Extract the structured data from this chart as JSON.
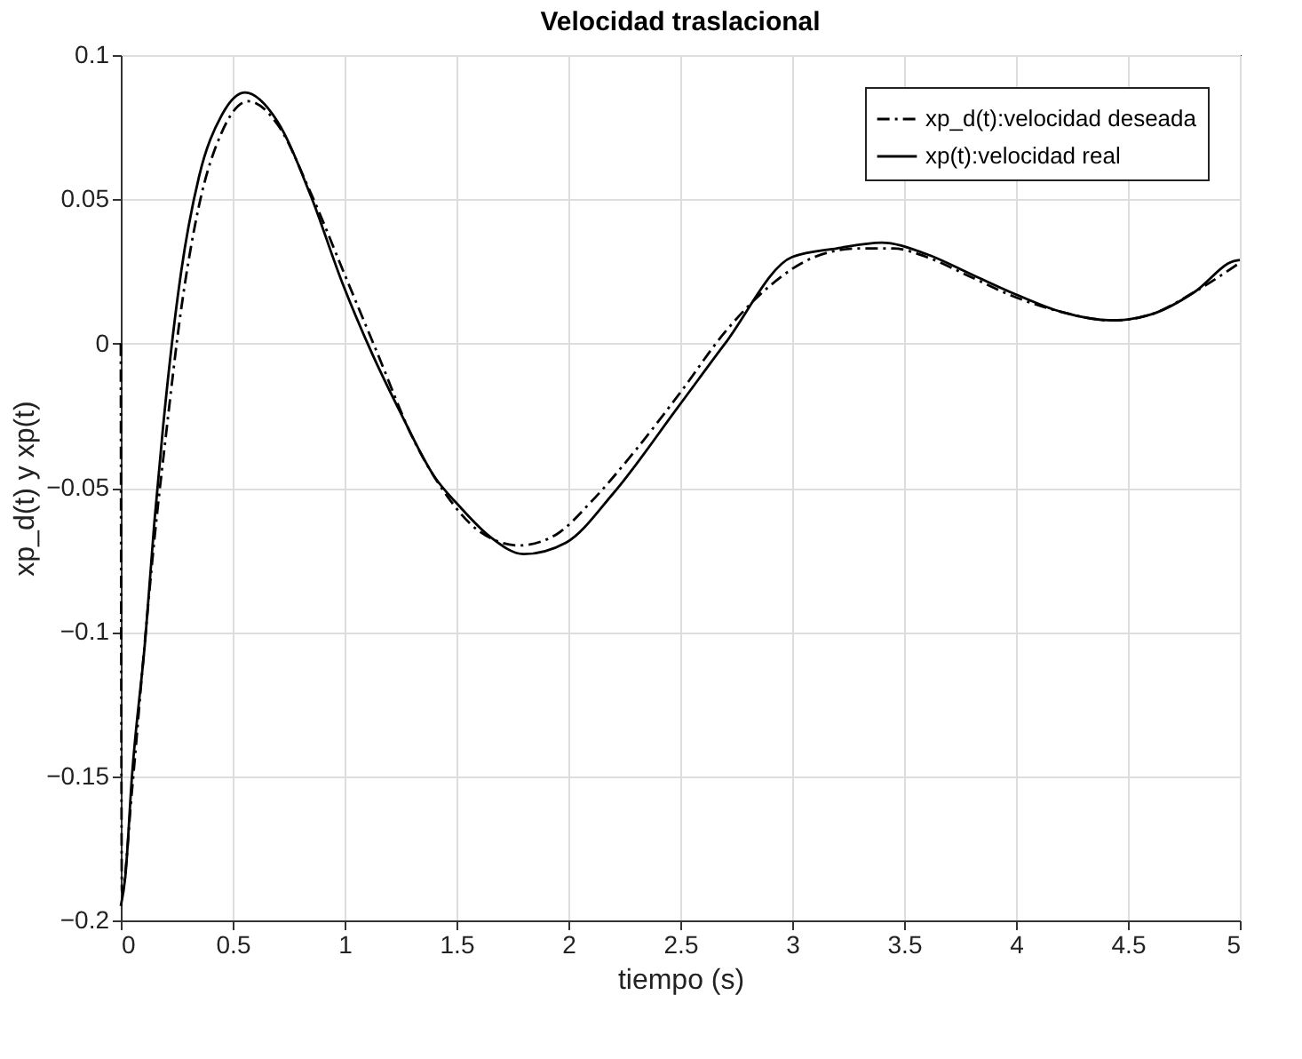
{
  "chart_data": {
    "type": "line",
    "title": "Velocidad traslacional",
    "xlabel": "tiempo (s)",
    "ylabel": "xp_d(t) y xp(t)",
    "xlim": [
      0,
      5
    ],
    "xticks": [
      0,
      0.5,
      1,
      1.5,
      2,
      2.5,
      3,
      3.5,
      4,
      4.5,
      5
    ],
    "ylim": [
      -0.2,
      0.1
    ],
    "yticks": [
      -0.2,
      -0.15,
      -0.1,
      -0.05,
      0,
      0.05,
      0.1
    ],
    "grid": true,
    "legend": "top right",
    "marker": "none",
    "series": [
      {
        "name": "xp_d(t):velocidad deseada",
        "color": "#000000",
        "line_style": "dashed",
        "x": [
          0,
          0.005,
          0.05,
          0.1,
          0.15,
          0.2,
          0.27,
          0.35,
          0.45,
          0.57,
          0.7,
          0.85,
          1.0,
          1.15,
          1.3,
          1.45,
          1.6,
          1.78,
          1.95,
          2.1,
          2.3,
          2.5,
          2.7,
          2.9,
          3.1,
          3.3,
          3.45,
          3.6,
          3.8,
          4.0,
          4.2,
          4.43,
          4.6,
          4.8,
          5.0
        ],
        "values": [
          0,
          -0.19,
          -0.155,
          -0.11,
          -0.068,
          -0.033,
          0.012,
          0.048,
          0.073,
          0.084,
          0.076,
          0.052,
          0.024,
          -0.004,
          -0.032,
          -0.052,
          -0.065,
          -0.07,
          -0.066,
          -0.055,
          -0.037,
          -0.017,
          0.004,
          0.02,
          0.03,
          0.033,
          0.033,
          0.03,
          0.023,
          0.016,
          0.011,
          0.008,
          0.01,
          0.018,
          0.028
        ]
      },
      {
        "name": "xp(t):velocidad real",
        "color": "#000000",
        "line_style": "solid",
        "x": [
          0,
          0.02,
          0.05,
          0.11,
          0.15,
          0.19,
          0.27,
          0.35,
          0.45,
          0.555,
          0.7,
          0.85,
          0.99,
          1.12,
          1.25,
          1.4,
          1.52,
          1.65,
          1.8,
          1.99,
          2.2,
          2.49,
          2.7,
          3.0,
          3.2,
          3.4,
          3.6,
          3.8,
          4.0,
          4.2,
          4.43,
          4.6,
          4.8,
          4.97,
          5.0
        ],
        "values": [
          -0.195,
          -0.185,
          -0.15,
          -0.102,
          -0.062,
          -0.028,
          0.025,
          0.058,
          0.079,
          0.087,
          0.077,
          0.051,
          0.021,
          -0.003,
          -0.024,
          -0.046,
          -0.057,
          -0.067,
          -0.073,
          -0.069,
          -0.052,
          -0.022,
          0.0,
          0.03,
          0.033,
          0.035,
          0.031,
          0.024,
          0.017,
          0.011,
          0.008,
          0.01,
          0.018,
          0.0285,
          0.029
        ]
      }
    ]
  }
}
